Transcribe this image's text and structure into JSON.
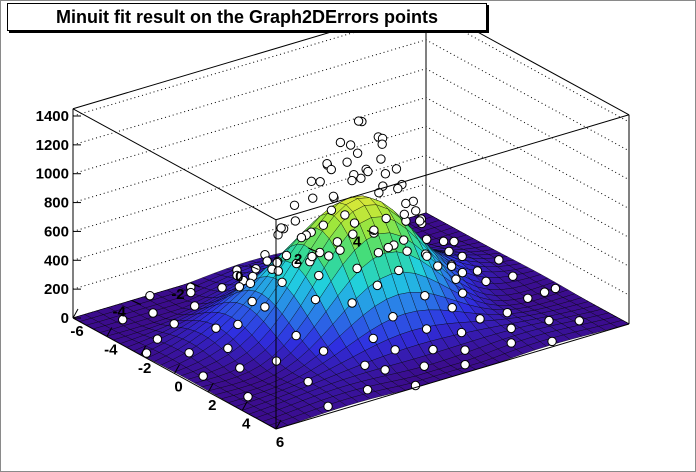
{
  "title": "Minuit fit result on the Graph2DErrors points",
  "colors": {
    "background": "#ffffff",
    "frame": "#000000",
    "marker_fill": "#ffffff",
    "marker_edge": "#000000"
  },
  "chart_data": {
    "type": "surface3d",
    "title": "Minuit fit result on the Graph2DErrors points",
    "x_ticks": [
      "-6",
      "-4",
      "-2",
      "0",
      "2",
      "4",
      "6"
    ],
    "y_ticks": [
      "-4",
      "-2",
      "0",
      "2",
      "4"
    ],
    "z_ticks": [
      "0",
      "200",
      "400",
      "600",
      "800",
      "1000",
      "1200",
      "1400"
    ],
    "xlim": [
      -6,
      6
    ],
    "ylim": [
      -6,
      6
    ],
    "zlim": [
      0,
      1450
    ],
    "grid": true,
    "surface": {
      "model": "gaussian bump with ripple",
      "amplitude": 860,
      "sigma": 2.0,
      "colormap": [
        "#3b0c8c",
        "#2f2fe0",
        "#2a7fe8",
        "#20cfe0",
        "#3cdc80",
        "#9fe63c",
        "#e8e838"
      ]
    },
    "points": [
      [
        0.1,
        0.2,
        1380
      ],
      [
        -0.4,
        0.6,
        1320
      ],
      [
        0.5,
        -0.3,
        1270
      ],
      [
        0.3,
        0.9,
        1230
      ],
      [
        -0.8,
        0.1,
        1180
      ],
      [
        0.9,
        0.5,
        1150
      ],
      [
        -0.2,
        -0.7,
        1120
      ],
      [
        1.1,
        -0.6,
        1080
      ],
      [
        -1.0,
        0.8,
        1050
      ],
      [
        0.6,
        1.2,
        1020
      ],
      [
        -0.6,
        -1.0,
        990
      ],
      [
        1.3,
        0.2,
        960
      ],
      [
        0.0,
        -1.3,
        930
      ],
      [
        -1.3,
        -0.3,
        900
      ],
      [
        0.4,
        1.5,
        880
      ],
      [
        1.5,
        1.0,
        850
      ],
      [
        -1.5,
        1.2,
        820
      ],
      [
        0.8,
        -1.4,
        800
      ],
      [
        -0.9,
        1.6,
        780
      ],
      [
        1.7,
        -0.2,
        750
      ],
      [
        -1.7,
        0.4,
        720
      ],
      [
        0.2,
        -1.8,
        700
      ],
      [
        1.2,
        1.7,
        680
      ],
      [
        -1.2,
        -1.6,
        660
      ],
      [
        1.9,
        0.7,
        640
      ],
      [
        -1.9,
        -0.8,
        620
      ],
      [
        0.7,
        2.0,
        600
      ],
      [
        -0.5,
        2.1,
        580
      ],
      [
        2.1,
        -1.0,
        560
      ],
      [
        -2.1,
        1.0,
        540
      ],
      [
        1.4,
        -1.9,
        520
      ],
      [
        -1.4,
        2.0,
        500
      ],
      [
        2.3,
        0.3,
        480
      ],
      [
        -2.3,
        -0.2,
        460
      ],
      [
        0.3,
        2.4,
        440
      ],
      [
        0.1,
        -2.4,
        420
      ],
      [
        2.0,
        1.8,
        400
      ],
      [
        -2.0,
        -1.7,
        390
      ],
      [
        2.5,
        -1.4,
        370
      ],
      [
        -2.5,
        1.5,
        350
      ],
      [
        1.6,
        2.5,
        330
      ],
      [
        -1.6,
        -2.5,
        310
      ],
      [
        2.8,
        0.9,
        300
      ],
      [
        -2.8,
        -0.9,
        280
      ],
      [
        0.9,
        2.9,
        270
      ],
      [
        -0.8,
        -2.9,
        260
      ],
      [
        3.0,
        -0.3,
        240
      ],
      [
        -3.0,
        0.4,
        230
      ],
      [
        2.6,
        2.3,
        220
      ],
      [
        -2.6,
        -2.3,
        210
      ],
      [
        3.2,
        1.6,
        200
      ],
      [
        -3.2,
        -1.5,
        195
      ],
      [
        1.8,
        -2.9,
        190
      ],
      [
        -1.9,
        3.0,
        180
      ],
      [
        3.4,
        -1.2,
        170
      ],
      [
        -3.4,
        1.2,
        160
      ],
      [
        0.5,
        3.5,
        155
      ],
      [
        -0.6,
        -3.5,
        150
      ],
      [
        3.6,
        0.5,
        145
      ],
      [
        -3.6,
        -0.4,
        140
      ],
      [
        2.9,
        -2.6,
        135
      ],
      [
        -2.9,
        2.6,
        130
      ],
      [
        3.8,
        2.2,
        125
      ],
      [
        -3.8,
        -2.2,
        120
      ],
      [
        1.2,
        3.9,
        115
      ],
      [
        -1.2,
        -3.9,
        110
      ],
      [
        4.0,
        -0.8,
        105
      ],
      [
        -4.0,
        0.9,
        100
      ],
      [
        4.1,
        1.4,
        98
      ],
      [
        -4.1,
        -1.3,
        96
      ],
      [
        2.2,
        -3.8,
        94
      ],
      [
        -2.2,
        3.8,
        92
      ],
      [
        4.3,
        -2.0,
        90
      ],
      [
        -4.3,
        2.1,
        88
      ],
      [
        0.0,
        4.3,
        86
      ],
      [
        0.2,
        -4.3,
        84
      ],
      [
        3.5,
        3.3,
        82
      ],
      [
        -3.5,
        -3.3,
        80
      ],
      [
        4.5,
        0.2,
        78
      ],
      [
        -4.5,
        -0.1,
        76
      ],
      [
        4.6,
        2.8,
        74
      ],
      [
        -4.6,
        -2.8,
        72
      ],
      [
        2.8,
        4.4,
        70
      ],
      [
        -2.8,
        -4.4,
        68
      ],
      [
        4.8,
        -1.6,
        66
      ],
      [
        -4.8,
        1.7,
        64
      ],
      [
        1.6,
        -4.7,
        62
      ],
      [
        -1.6,
        4.7,
        60
      ],
      [
        5.0,
        1.0,
        58
      ],
      [
        -5.0,
        -1.0,
        56
      ],
      [
        3.9,
        -3.7,
        54
      ],
      [
        -3.9,
        3.7,
        52
      ],
      [
        5.2,
        -0.5,
        50
      ],
      [
        -5.2,
        0.5,
        48
      ],
      [
        0.7,
        5.1,
        46
      ],
      [
        -0.7,
        -5.1,
        44
      ],
      [
        5.3,
        2.4,
        42
      ],
      [
        -5.3,
        -2.4,
        40
      ],
      [
        2.4,
        5.2,
        38
      ],
      [
        -2.4,
        -5.2,
        36
      ],
      [
        5.5,
        -2.6,
        34
      ],
      [
        -5.5,
        2.7,
        32
      ],
      [
        4.4,
        4.2,
        30
      ],
      [
        -4.4,
        -4.2,
        28
      ],
      [
        5.7,
        0.6,
        26
      ],
      [
        -5.7,
        -0.6,
        24
      ],
      [
        1.0,
        -5.6,
        22
      ],
      [
        -1.0,
        5.6,
        20
      ],
      [
        5.8,
        3.5,
        18
      ],
      [
        -5.8,
        -3.5,
        16
      ],
      [
        3.3,
        -5.4,
        14
      ],
      [
        -3.3,
        5.4,
        12
      ],
      [
        5.6,
        -4.0,
        10
      ],
      [
        -5.6,
        4.0,
        8
      ],
      [
        4.8,
        5.0,
        6
      ],
      [
        -4.8,
        -5.0,
        5
      ],
      [
        5.9,
        -1.2,
        4
      ],
      [
        -5.9,
        1.2,
        3
      ],
      [
        2.0,
        5.8,
        2
      ],
      [
        -2.0,
        -5.8,
        1
      ],
      [
        0.8,
        0.6,
        1240
      ],
      [
        -0.3,
        1.1,
        1190
      ],
      [
        0.4,
        -0.9,
        1130
      ],
      [
        1.0,
        0.0,
        1100
      ],
      [
        -0.7,
        -0.4,
        1060
      ],
      [
        0.2,
        0.4,
        1040
      ],
      [
        -1.1,
        0.5,
        1000
      ],
      [
        0.7,
        -1.0,
        970
      ],
      [
        1.2,
        0.9,
        940
      ],
      [
        -0.4,
        1.4,
        910
      ],
      [
        -1.4,
        0.9,
        870
      ],
      [
        1.6,
        -0.8,
        830
      ],
      [
        0.9,
        1.6,
        790
      ],
      [
        -1.6,
        -1.0,
        760
      ],
      [
        1.8,
        1.3,
        730
      ],
      [
        -1.0,
        -1.8,
        690
      ],
      [
        2.2,
        0.0,
        650
      ],
      [
        0.0,
        2.2,
        630
      ],
      [
        -2.2,
        0.6,
        590
      ],
      [
        0.6,
        -2.2,
        570
      ],
      [
        2.4,
        1.2,
        530
      ],
      [
        -2.4,
        -1.1,
        510
      ],
      [
        1.3,
        2.4,
        490
      ],
      [
        -1.1,
        2.5,
        470
      ],
      [
        2.6,
        -0.6,
        450
      ],
      [
        -2.7,
        0.2,
        430
      ],
      [
        1.9,
        -2.3,
        410
      ],
      [
        -1.8,
        -2.2,
        380
      ],
      [
        2.9,
        1.9,
        360
      ],
      [
        -3.0,
        -1.2,
        340
      ],
      [
        0.4,
        3.1,
        320
      ],
      [
        0.3,
        -3.1,
        305
      ]
    ]
  }
}
